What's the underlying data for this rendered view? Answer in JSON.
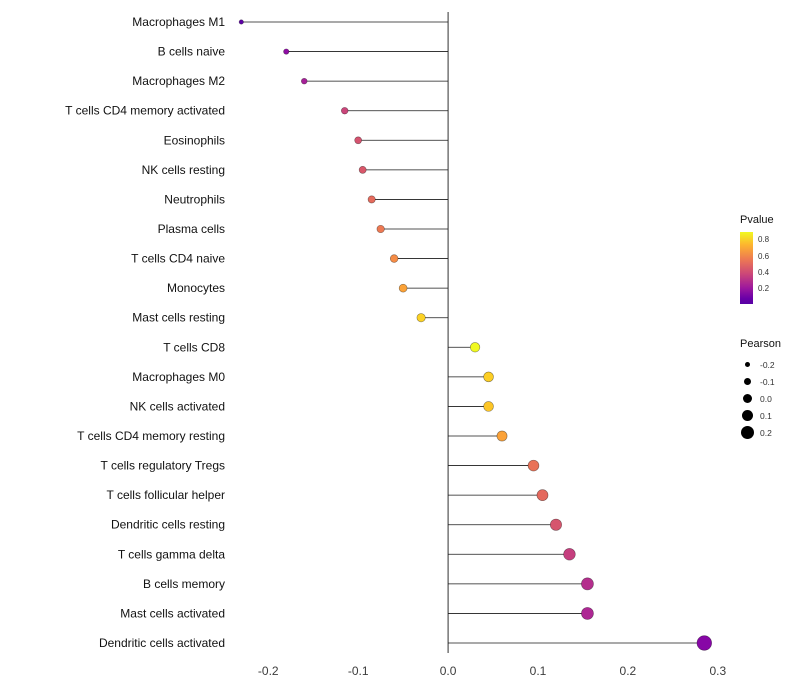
{
  "chart_data": {
    "type": "lollipop",
    "title": "",
    "xlabel": "",
    "ylabel": "",
    "xlim": [
      -0.237,
      0.308
    ],
    "x_ticks": [
      -0.2,
      -0.1,
      0.0,
      0.1,
      0.2,
      0.3
    ],
    "x_tick_labels": [
      "-0.2",
      "-0.1",
      "0.0",
      "0.1",
      "0.2",
      "0.3"
    ],
    "grid": "off",
    "legend_position": "right",
    "color_legend": {
      "title": "Pvalue",
      "ticks": [
        0.8,
        0.6,
        0.4,
        0.2
      ],
      "colormap": "plasma",
      "top_color": "#f0f921",
      "bottom_color": "#5601a4"
    },
    "size_legend": {
      "title": "Pearson",
      "ticks": [
        -0.2,
        -0.1,
        0.0,
        0.1,
        0.2
      ]
    },
    "points": [
      {
        "label": "Macrophages M1",
        "pearson": -0.23,
        "color": "#5d01a6"
      },
      {
        "label": "B cells naive",
        "pearson": -0.18,
        "color": "#8f0da4"
      },
      {
        "label": "Macrophages M2",
        "pearson": -0.16,
        "color": "#a62098"
      },
      {
        "label": "T cells CD4 memory activated",
        "pearson": -0.115,
        "color": "#ca457a"
      },
      {
        "label": "Eosinophils",
        "pearson": -0.1,
        "color": "#d5536f"
      },
      {
        "label": "NK cells resting",
        "pearson": -0.095,
        "color": "#d9576a"
      },
      {
        "label": "Neutrophils",
        "pearson": -0.085,
        "color": "#e56b5d"
      },
      {
        "label": "Plasma cells",
        "pearson": -0.075,
        "color": "#ed7953"
      },
      {
        "label": "T cells CD4 naive",
        "pearson": -0.06,
        "color": "#f58c46"
      },
      {
        "label": "Monocytes",
        "pearson": -0.05,
        "color": "#fba238"
      },
      {
        "label": "Mast cells resting",
        "pearson": -0.03,
        "color": "#fcd225"
      },
      {
        "label": "T cells CD8",
        "pearson": 0.03,
        "color": "#f0f921"
      },
      {
        "label": "Macrophages M0",
        "pearson": 0.045,
        "color": "#fcce25"
      },
      {
        "label": "NK cells activated",
        "pearson": 0.045,
        "color": "#fcc527"
      },
      {
        "label": "T cells CD4 memory resting",
        "pearson": 0.06,
        "color": "#fba238"
      },
      {
        "label": "T cells regulatory  Tregs",
        "pearson": 0.095,
        "color": "#e97257"
      },
      {
        "label": "T cells follicular helper",
        "pearson": 0.105,
        "color": "#e4695e"
      },
      {
        "label": "Dendritic cells resting",
        "pearson": 0.12,
        "color": "#d6556d"
      },
      {
        "label": "T cells gamma delta",
        "pearson": 0.135,
        "color": "#c53f7e"
      },
      {
        "label": "B cells memory",
        "pearson": 0.155,
        "color": "#b42e8d"
      },
      {
        "label": "Mast cells activated",
        "pearson": 0.155,
        "color": "#ad2793"
      },
      {
        "label": "Dendritic cells activated",
        "pearson": 0.285,
        "color": "#8707a6"
      }
    ]
  }
}
